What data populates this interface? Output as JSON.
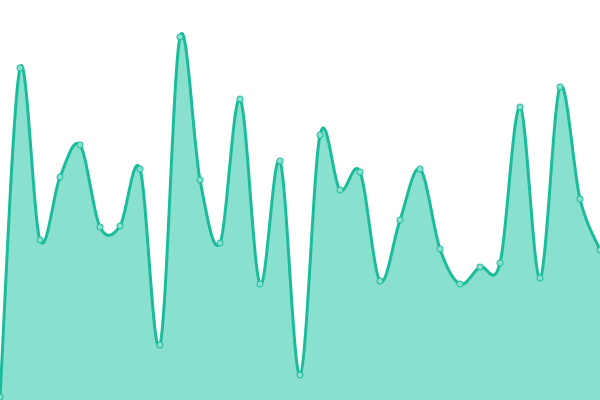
{
  "chart_data": {
    "type": "area",
    "title": "",
    "xlabel": "",
    "ylabel": "",
    "x": [
      0,
      1,
      2,
      3,
      4,
      5,
      6,
      7,
      8,
      9,
      10,
      11,
      12,
      13,
      14,
      15,
      16,
      17,
      18,
      19,
      20,
      21,
      22,
      23,
      24,
      25,
      26,
      27,
      28,
      29,
      30
    ],
    "values": [
      3,
      332,
      160,
      223,
      255,
      173,
      174,
      231,
      55,
      363,
      220,
      157,
      301,
      116,
      239,
      25,
      265,
      210,
      228,
      119,
      180,
      231,
      151,
      116,
      133,
      137,
      293,
      122,
      313,
      201,
      150
    ],
    "ylim": [
      0,
      400
    ],
    "grid": false,
    "legend": "none",
    "colors": {
      "line": "#1abc9c",
      "fill": "#8ae0cf",
      "marker": "#8ae0cf"
    }
  }
}
